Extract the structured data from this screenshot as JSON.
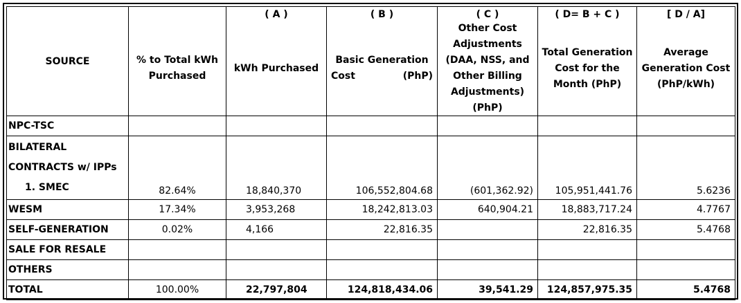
{
  "headers": {
    "source": "SOURCE",
    "pct": [
      "% to Total kWh",
      "Purchased"
    ],
    "a": {
      "tag": "( A )",
      "label": "kWh Purchased"
    },
    "b": {
      "tag": "( B )",
      "label_line1": "Basic Generation",
      "label_left": "Cost",
      "label_right": "(PhP)"
    },
    "c": {
      "tag": "( C )",
      "lines": [
        "Other Cost",
        "Adjustments",
        "(DAA, NSS, and",
        "Other Billing",
        "Adjustments)",
        "(PhP)"
      ]
    },
    "d": {
      "tag": "( D= B + C )",
      "lines": [
        "Total Generation",
        "Cost for the",
        "Month (PhP)"
      ]
    },
    "e": {
      "tag": "[ D / A]",
      "lines": [
        "Average",
        "Generation Cost",
        "(PhP/kWh)"
      ]
    }
  },
  "rows": {
    "npc": {
      "source": "NPC-TSC"
    },
    "bilateral": {
      "source_lines": [
        "BILATERAL",
        "CONTRACTS w/ IPPs",
        "1.   SMEC"
      ],
      "pct": "82.64%",
      "kwh": "18,840,370",
      "basic": "106,552,804.68",
      "other": "(601,362.92)",
      "total": "105,951,441.76",
      "avg": "5.6236"
    },
    "wesm": {
      "source": "WESM",
      "pct": "17.34%",
      "kwh": "3,953,268",
      "basic": "18,242,813.03",
      "other": "640,904.21",
      "total": "18,883,717.24",
      "avg": "4.7767"
    },
    "selfgen": {
      "source": "SELF-GENERATION",
      "pct": "0.02%",
      "kwh": "4,166",
      "basic": "22,816.35",
      "other": "",
      "total": "22,816.35",
      "avg": "5.4768"
    },
    "resale": {
      "source": "SALE FOR RESALE"
    },
    "others": {
      "source": "OTHERS"
    },
    "total": {
      "source": "TOTAL",
      "pct": "100.00%",
      "kwh": "22,797,804",
      "basic": "124,818,434.06",
      "other": "39,541.29",
      "total": "124,857,975.35",
      "avg": "5.4768"
    }
  }
}
